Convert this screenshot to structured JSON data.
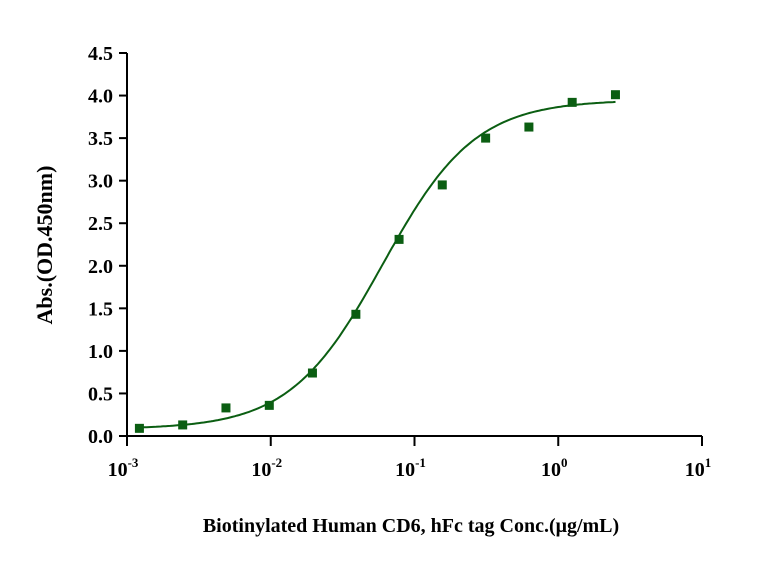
{
  "chart_data": {
    "type": "scatter",
    "title": "",
    "xlabel": "Biotinylated Human CD6, hFc tag Conc.(μg/mL)",
    "ylabel": "Abs.(OD.450nm)",
    "xscale": "log",
    "xlim": [
      0.001,
      10
    ],
    "ylim": [
      0,
      4.5
    ],
    "x_ticks": [
      {
        "base": "10",
        "exp": "-3",
        "value": 0.001
      },
      {
        "base": "10",
        "exp": "-2",
        "value": 0.01
      },
      {
        "base": "10",
        "exp": "-1",
        "value": 0.1
      },
      {
        "base": "10",
        "exp": "0",
        "value": 1
      },
      {
        "base": "10",
        "exp": "1",
        "value": 10
      }
    ],
    "y_ticks": [
      "0.0",
      "0.5",
      "1.0",
      "1.5",
      "2.0",
      "2.5",
      "3.0",
      "3.5",
      "4.0",
      "4.5"
    ],
    "grid": false,
    "color": "#0b5e12",
    "series": [
      {
        "name": "Biotinylated Human CD6, hFc tag",
        "x": [
          0.00122,
          0.00244,
          0.00488,
          0.00977,
          0.0195,
          0.0391,
          0.0781,
          0.156,
          0.3125,
          0.625,
          1.25,
          2.5
        ],
        "y": [
          0.09,
          0.13,
          0.33,
          0.36,
          0.74,
          1.43,
          2.31,
          2.95,
          3.5,
          3.63,
          3.92,
          4.01
        ]
      }
    ],
    "fit": {
      "model": "4PL",
      "bottom": 0.08,
      "top": 3.95,
      "ec50": 0.06,
      "hill": 1.35
    }
  }
}
